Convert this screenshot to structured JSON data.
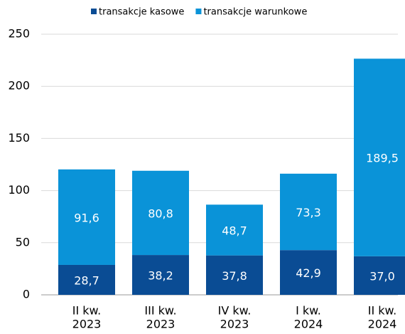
{
  "chart_data": {
    "type": "bar",
    "stacked": true,
    "categories": [
      [
        "II kw.",
        "2023"
      ],
      [
        "III kw.",
        "2023"
      ],
      [
        "IV kw.",
        "2023"
      ],
      [
        "I kw.",
        "2024"
      ],
      [
        "II kw.",
        "2024"
      ]
    ],
    "series": [
      {
        "name": "transakcje kasowe",
        "color": "#0a4c94",
        "values": [
          28.7,
          38.2,
          37.8,
          42.9,
          37.0
        ],
        "value_labels": [
          "28,7",
          "38,2",
          "37,8",
          "42,9",
          "37,0"
        ]
      },
      {
        "name": "transakcje warunkowe",
        "color": "#0a93d8",
        "values": [
          91.6,
          80.8,
          48.7,
          73.3,
          189.5
        ],
        "value_labels": [
          "91,6",
          "80,8",
          "48,7",
          "73,3",
          "189,5"
        ]
      }
    ],
    "ylim": [
      0,
      250
    ],
    "yticks": [
      0,
      50,
      100,
      150,
      200,
      250
    ],
    "grid": true,
    "legend": "top"
  }
}
